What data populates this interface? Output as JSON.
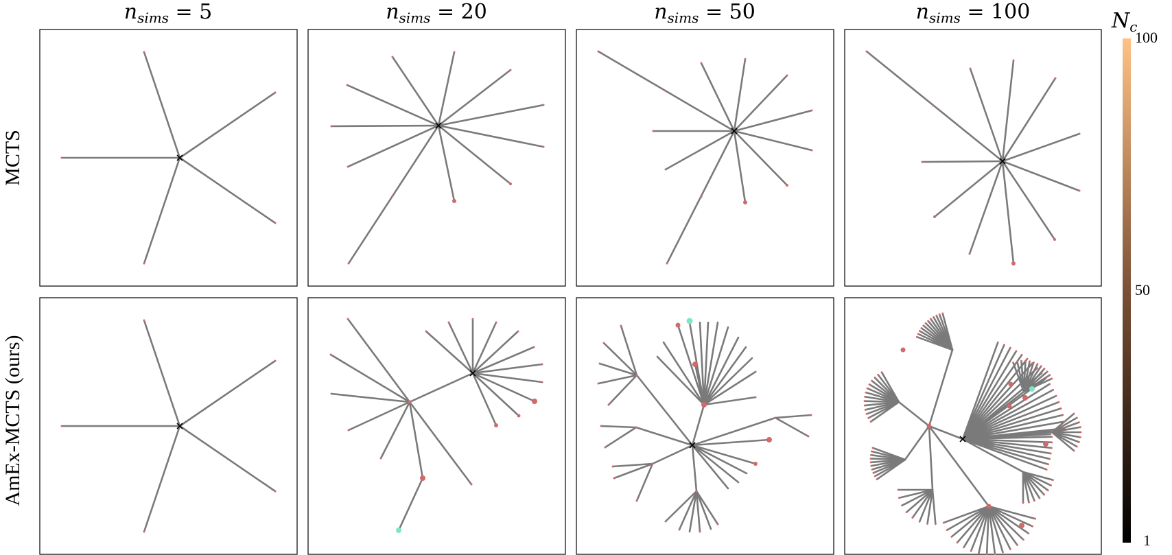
{
  "columns": [
    {
      "label": "n_sims = 5",
      "var": "n",
      "sub": "sims",
      "eq": " = 5"
    },
    {
      "label": "n_sims = 20",
      "var": "n",
      "sub": "sims",
      "eq": " = 20"
    },
    {
      "label": "n_sims = 50",
      "var": "n",
      "sub": "sims",
      "eq": " = 50"
    },
    {
      "label": "n_sims = 100",
      "var": "n",
      "sub": "sims",
      "eq": " = 100"
    }
  ],
  "rows": [
    "MCTS",
    "AmEx-MCTS (ours)"
  ],
  "colorbar": {
    "title_var": "N",
    "title_sub": "c",
    "ticks": [
      "100",
      "50",
      "1"
    ],
    "colors": {
      "low": "#000000",
      "mid": "#7b5036",
      "high": "#ffc285"
    }
  },
  "colors": {
    "edge_default": "#7a7a7a",
    "node": "#d16a6a",
    "terminal_node": "#7fe5c8",
    "root_marker": "#000000"
  }
}
